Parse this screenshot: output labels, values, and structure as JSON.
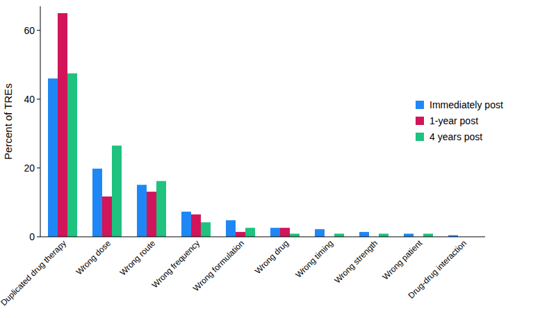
{
  "chart_data": {
    "type": "bar",
    "y_label": "Percent of TREs",
    "categories": [
      "Duplicated drug therapy",
      "Wrong dose",
      "Wrong route",
      "Wrong frequency",
      "Wrong formulation",
      "Wrong drug",
      "Wrong timing",
      "Wrong strength",
      "Wrong patient",
      "Drug-drug interaction"
    ],
    "series": [
      {
        "name": "Immediately post",
        "color": "#1f87f5",
        "values": [
          46,
          19.8,
          15.1,
          7.3,
          4.8,
          2.6,
          2.2,
          1.4,
          0.9,
          0.45
        ]
      },
      {
        "name": "1-year post",
        "color": "#d2145a",
        "values": [
          65,
          11.7,
          13.1,
          6.5,
          1.4,
          2.6,
          0,
          0,
          0,
          0
        ]
      },
      {
        "name": "4 years post",
        "color": "#1fc27f",
        "values": [
          47.5,
          26.5,
          16.2,
          4.2,
          2.6,
          0.9,
          0.9,
          0.9,
          0.9,
          0
        ]
      }
    ],
    "ylim": [
      0,
      67
    ],
    "yticks": [
      0,
      20,
      40,
      60
    ],
    "grid": false,
    "legend": "right"
  }
}
